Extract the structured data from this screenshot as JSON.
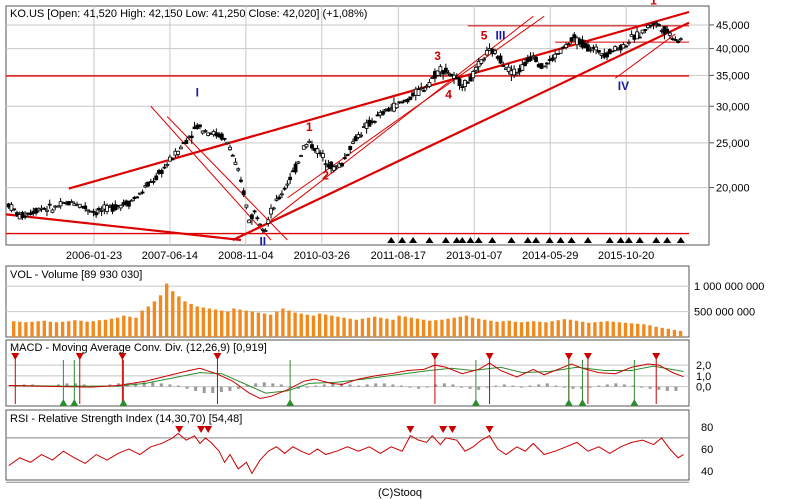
{
  "chart_data": {
    "type": "line",
    "symbol": "KO.US",
    "footer": "(C)Stooq",
    "main": {
      "header": "KO.US [Open: 41,520  High: 42,150  Low: 41,250  Close: 42,020] (+1,08%)",
      "y_tick_labels": [
        "45,000",
        "40,000",
        "35,000",
        "30,000",
        "25,000",
        "20,000"
      ],
      "y_tick_values": [
        45000,
        40000,
        35000,
        30000,
        25000,
        20000
      ],
      "ylim": [
        15400,
        48000
      ],
      "log_scale": true,
      "x_tick_labels": [
        "2006-01-23",
        "2007-06-14",
        "2008-11-04",
        "2010-03-26",
        "2011-08-17",
        "2013-01-07",
        "2014-05-29",
        "2015-10-20"
      ],
      "x_tick_years": [
        2006.06,
        2007.45,
        2008.84,
        2010.23,
        2011.63,
        2013.02,
        2014.41,
        2015.8
      ],
      "xlim": [
        2004.45,
        2016.95
      ],
      "series": [
        {
          "values": [
            [
              2004.5,
              18400
            ],
            [
              2004.7,
              17300
            ],
            [
              2004.9,
              17700
            ],
            [
              2005.1,
              18100
            ],
            [
              2005.3,
              18000
            ],
            [
              2005.5,
              18400
            ],
            [
              2005.7,
              18600
            ],
            [
              2005.9,
              18100
            ],
            [
              2006.1,
              17700
            ],
            [
              2006.3,
              18000
            ],
            [
              2006.5,
              18300
            ],
            [
              2006.7,
              18600
            ],
            [
              2006.9,
              19300
            ],
            [
              2007.0,
              20000
            ],
            [
              2007.2,
              21000
            ],
            [
              2007.4,
              22500
            ],
            [
              2007.6,
              24000
            ],
            [
              2007.8,
              25800
            ],
            [
              2007.95,
              27200
            ],
            [
              2008.1,
              26600
            ],
            [
              2008.25,
              26200
            ],
            [
              2008.4,
              25800
            ],
            [
              2008.55,
              24500
            ],
            [
              2008.7,
              21500
            ],
            [
              2008.8,
              19500
            ],
            [
              2008.9,
              17000
            ],
            [
              2009.0,
              17700
            ],
            [
              2009.1,
              17000
            ],
            [
              2009.2,
              16300
            ],
            [
              2009.3,
              17700
            ],
            [
              2009.45,
              19000
            ],
            [
              2009.6,
              20500
            ],
            [
              2009.75,
              22000
            ],
            [
              2009.9,
              24500
            ],
            [
              2010.0,
              25000
            ],
            [
              2010.15,
              24000
            ],
            [
              2010.3,
              23000
            ],
            [
              2010.45,
              22000
            ],
            [
              2010.6,
              22500
            ],
            [
              2010.75,
              24500
            ],
            [
              2010.9,
              26000
            ],
            [
              2011.1,
              27500
            ],
            [
              2011.3,
              28700
            ],
            [
              2011.5,
              29800
            ],
            [
              2011.65,
              30300
            ],
            [
              2011.8,
              31000
            ],
            [
              2011.95,
              32000
            ],
            [
              2012.1,
              32800
            ],
            [
              2012.25,
              34500
            ],
            [
              2012.4,
              36200
            ],
            [
              2012.55,
              35500
            ],
            [
              2012.7,
              34000
            ],
            [
              2012.85,
              33500
            ],
            [
              2013.0,
              35000
            ],
            [
              2013.15,
              37500
            ],
            [
              2013.25,
              39000
            ],
            [
              2013.35,
              39500
            ],
            [
              2013.5,
              38000
            ],
            [
              2013.65,
              36000
            ],
            [
              2013.8,
              35500
            ],
            [
              2013.95,
              37000
            ],
            [
              2014.1,
              39000
            ],
            [
              2014.25,
              36500
            ],
            [
              2014.4,
              37500
            ],
            [
              2014.55,
              39000
            ],
            [
              2014.7,
              40500
            ],
            [
              2014.85,
              42000
            ],
            [
              2015.0,
              41000
            ],
            [
              2015.15,
              40000
            ],
            [
              2015.3,
              39500
            ],
            [
              2015.45,
              39000
            ],
            [
              2015.6,
              40000
            ],
            [
              2015.75,
              40500
            ],
            [
              2015.9,
              42000
            ],
            [
              2016.05,
              43000
            ],
            [
              2016.2,
              44500
            ],
            [
              2016.3,
              45500
            ],
            [
              2016.45,
              44500
            ],
            [
              2016.6,
              43000
            ],
            [
              2016.75,
              41700
            ],
            [
              2016.85,
              42020
            ]
          ]
        }
      ],
      "wave_labels": {
        "red": [
          "1",
          "2",
          "3",
          "4",
          "5",
          "1"
        ],
        "blue": [
          "I",
          "II",
          "III",
          "IV"
        ]
      },
      "colors": {
        "price": "#000000",
        "trend": "#dd0000",
        "wave_red": "#cc0000",
        "wave_blue": "#1a1aa0",
        "grid": "#c8c8c8"
      }
    },
    "volume": {
      "label": "VOL - Volume [89 930 030]",
      "y_tick_labels": [
        "1 000 000 000",
        "500 000 000"
      ],
      "y_tick_values": [
        1000000000,
        500000000
      ],
      "ylim": [
        0,
        1200000000
      ],
      "bar_color": "#f08a1e",
      "values": [
        310,
        300,
        290,
        300,
        310,
        320,
        300,
        290,
        300,
        310,
        330,
        320,
        300,
        310,
        330,
        340,
        360,
        380,
        420,
        400,
        380,
        520,
        600,
        700,
        820,
        1050,
        900,
        800,
        700,
        650,
        600,
        580,
        560,
        540,
        520,
        500,
        560,
        540,
        520,
        500,
        480,
        460,
        440,
        500,
        560,
        520,
        480,
        460,
        440,
        420,
        460,
        440,
        420,
        400,
        380,
        360,
        340,
        360,
        380,
        400,
        380,
        360,
        340,
        420,
        400,
        380,
        360,
        340,
        320,
        330,
        340,
        360,
        380,
        400,
        420,
        380,
        360,
        340,
        320,
        300,
        310,
        320,
        300,
        290,
        300,
        310,
        300,
        290,
        310,
        330,
        350,
        340,
        320,
        300,
        280,
        290,
        300,
        310,
        300,
        290,
        280,
        270,
        260,
        250,
        230,
        200,
        180,
        160,
        140,
        120
      ]
    },
    "macd": {
      "label": "MACD - Moving Average Conv. Div. (12,26,9) [0,919]",
      "y_tick_labels": [
        "2,0",
        "1,0",
        "0,0"
      ],
      "y_tick_values": [
        2,
        1,
        0
      ],
      "ylim": [
        -1.8,
        3.4
      ],
      "macd_color": "#cc0000",
      "signal_color": "#2e8b2e",
      "hist_color": "#999999",
      "macd": [
        [
          2004.5,
          0.1
        ],
        [
          2005.0,
          0.05
        ],
        [
          2005.5,
          0.0
        ],
        [
          2006.0,
          -0.05
        ],
        [
          2006.5,
          0.1
        ],
        [
          2007.0,
          0.5
        ],
        [
          2007.4,
          1.0
        ],
        [
          2007.8,
          1.5
        ],
        [
          2008.0,
          1.7
        ],
        [
          2008.3,
          1.2
        ],
        [
          2008.6,
          0.5
        ],
        [
          2008.9,
          -0.6
        ],
        [
          2009.1,
          -1.1
        ],
        [
          2009.3,
          -0.9
        ],
        [
          2009.6,
          -0.3
        ],
        [
          2009.9,
          0.5
        ],
        [
          2010.1,
          0.7
        ],
        [
          2010.4,
          0.3
        ],
        [
          2010.6,
          0.2
        ],
        [
          2010.9,
          0.7
        ],
        [
          2011.2,
          1.0
        ],
        [
          2011.5,
          1.2
        ],
        [
          2011.8,
          1.5
        ],
        [
          2012.1,
          1.6
        ],
        [
          2012.3,
          2.0
        ],
        [
          2012.5,
          1.8
        ],
        [
          2012.8,
          1.2
        ],
        [
          2013.1,
          1.6
        ],
        [
          2013.3,
          2.2
        ],
        [
          2013.5,
          1.5
        ],
        [
          2013.8,
          0.9
        ],
        [
          2014.1,
          1.6
        ],
        [
          2014.3,
          1.1
        ],
        [
          2014.6,
          1.7
        ],
        [
          2014.8,
          2.1
        ],
        [
          2015.0,
          1.7
        ],
        [
          2015.3,
          1.3
        ],
        [
          2015.6,
          1.2
        ],
        [
          2015.9,
          1.8
        ],
        [
          2016.2,
          2.1
        ],
        [
          2016.4,
          2.0
        ],
        [
          2016.65,
          1.3
        ],
        [
          2016.85,
          0.92
        ]
      ],
      "signal": [
        [
          2004.5,
          0.1
        ],
        [
          2005.5,
          0.05
        ],
        [
          2006.5,
          0.05
        ],
        [
          2007.0,
          0.3
        ],
        [
          2007.5,
          0.8
        ],
        [
          2008.0,
          1.3
        ],
        [
          2008.4,
          1.2
        ],
        [
          2008.8,
          0.3
        ],
        [
          2009.2,
          -0.6
        ],
        [
          2009.6,
          -0.4
        ],
        [
          2010.0,
          0.3
        ],
        [
          2010.5,
          0.4
        ],
        [
          2011.0,
          0.7
        ],
        [
          2011.6,
          1.1
        ],
        [
          2012.2,
          1.5
        ],
        [
          2012.6,
          1.7
        ],
        [
          2013.0,
          1.5
        ],
        [
          2013.5,
          1.8
        ],
        [
          2013.9,
          1.3
        ],
        [
          2014.4,
          1.4
        ],
        [
          2014.9,
          1.8
        ],
        [
          2015.4,
          1.5
        ],
        [
          2015.9,
          1.5
        ],
        [
          2016.3,
          1.9
        ],
        [
          2016.85,
          1.4
        ]
      ],
      "hist": [
        0.1,
        0.2,
        0.2,
        0.1,
        0.1,
        0.2,
        0.3,
        0.3,
        0.2,
        0.1,
        0.1,
        0.2,
        0.3,
        0.3,
        0.3,
        0.4,
        0.4,
        0.3,
        0.2,
        0.1,
        -0.2,
        -0.4,
        -0.6,
        -0.6,
        -0.5,
        -0.4,
        -0.2,
        0.1,
        0.3,
        0.4,
        0.3,
        0.2,
        0.0,
        -0.2,
        -0.1,
        0.1,
        0.2,
        0.3,
        0.3,
        0.2,
        0.1,
        0.2,
        0.3,
        0.3,
        0.2,
        0.1,
        -0.1,
        -0.2,
        0.0,
        0.2,
        0.3,
        0.2,
        -0.1,
        -0.2,
        -0.3,
        -0.1,
        0.1,
        0.2,
        0.1,
        -0.1,
        0.1,
        0.2,
        0.3,
        0.1,
        -0.1,
        -0.2,
        -0.2,
        -0.1,
        0.1,
        0.2,
        0.3,
        0.2,
        0.1,
        -0.1,
        -0.2,
        -0.3,
        -0.4,
        -0.4
      ],
      "sell_signals": [
        2004.62,
        2005.8,
        2006.58,
        2008.32,
        2012.3,
        2013.3,
        2014.75,
        2015.1,
        2016.35
      ],
      "buy_signals": [
        2005.5,
        2005.7,
        2006.6,
        2009.65,
        2013.05,
        2014.75,
        2015.0,
        2015.95
      ]
    },
    "rsi": {
      "label": "RSI - Relative Strength Index (14,30,70) [54,48]",
      "y_tick_labels": [
        "80",
        "60",
        "40"
      ],
      "y_tick_values": [
        80,
        60,
        40
      ],
      "ylim": [
        32,
        88
      ],
      "line_color": "#cc0000",
      "band_values": [
        70,
        30
      ],
      "values": [
        [
          2004.5,
          45
        ],
        [
          2004.7,
          52
        ],
        [
          2004.9,
          48
        ],
        [
          2005.1,
          55
        ],
        [
          2005.3,
          50
        ],
        [
          2005.5,
          58
        ],
        [
          2005.7,
          52
        ],
        [
          2005.9,
          47
        ],
        [
          2006.1,
          55
        ],
        [
          2006.3,
          50
        ],
        [
          2006.5,
          56
        ],
        [
          2006.7,
          60
        ],
        [
          2006.9,
          55
        ],
        [
          2007.1,
          62
        ],
        [
          2007.3,
          65
        ],
        [
          2007.5,
          70
        ],
        [
          2007.6,
          74
        ],
        [
          2007.75,
          68
        ],
        [
          2007.9,
          72
        ],
        [
          2008.0,
          65
        ],
        [
          2008.1,
          70
        ],
        [
          2008.2,
          66
        ],
        [
          2008.35,
          58
        ],
        [
          2008.45,
          48
        ],
        [
          2008.55,
          55
        ],
        [
          2008.7,
          42
        ],
        [
          2008.85,
          48
        ],
        [
          2008.95,
          38
        ],
        [
          2009.1,
          50
        ],
        [
          2009.25,
          58
        ],
        [
          2009.4,
          62
        ],
        [
          2009.55,
          56
        ],
        [
          2009.7,
          62
        ],
        [
          2009.85,
          58
        ],
        [
          2010.0,
          55
        ],
        [
          2010.15,
          60
        ],
        [
          2010.3,
          55
        ],
        [
          2010.5,
          58
        ],
        [
          2010.7,
          62
        ],
        [
          2010.9,
          58
        ],
        [
          2011.1,
          62
        ],
        [
          2011.3,
          56
        ],
        [
          2011.5,
          62
        ],
        [
          2011.7,
          58
        ],
        [
          2011.85,
          72
        ],
        [
          2012.0,
          68
        ],
        [
          2012.15,
          66
        ],
        [
          2012.25,
          72
        ],
        [
          2012.4,
          64
        ],
        [
          2012.5,
          70
        ],
        [
          2012.7,
          68
        ],
        [
          2012.85,
          58
        ],
        [
          2013.0,
          62
        ],
        [
          2013.15,
          68
        ],
        [
          2013.3,
          72
        ],
        [
          2013.45,
          60
        ],
        [
          2013.6,
          55
        ],
        [
          2013.8,
          62
        ],
        [
          2013.95,
          58
        ],
        [
          2014.1,
          65
        ],
        [
          2014.3,
          55
        ],
        [
          2014.5,
          58
        ],
        [
          2014.7,
          62
        ],
        [
          2014.9,
          66
        ],
        [
          2015.1,
          58
        ],
        [
          2015.3,
          62
        ],
        [
          2015.5,
          56
        ],
        [
          2015.7,
          62
        ],
        [
          2015.9,
          66
        ],
        [
          2016.1,
          68
        ],
        [
          2016.3,
          64
        ],
        [
          2016.45,
          70
        ],
        [
          2016.6,
          60
        ],
        [
          2016.75,
          52
        ],
        [
          2016.85,
          55
        ]
      ],
      "overbought_markers": [
        2007.62,
        2008.02,
        2008.15,
        2011.85,
        2012.45,
        2012.62,
        2013.3
      ]
    }
  }
}
